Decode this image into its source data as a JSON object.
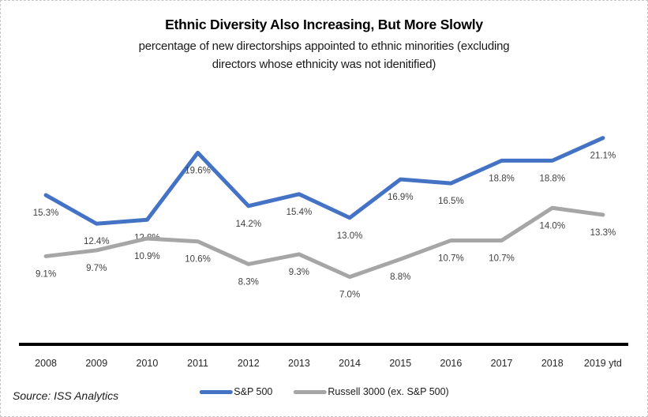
{
  "title": "Ethnic Diversity Also Increasing, But More Slowly",
  "subtitle_lines": [
    "percentage of new directorships appointed to ethnic minorities (excluding",
    "directors whose ethnicity was not idenitified)"
  ],
  "source": "Source: ISS Analytics",
  "colors": {
    "sp500": "#4472C4",
    "russell": "#A6A6A6",
    "axis": "#000000",
    "data_label": "#404040"
  },
  "chart_data": {
    "type": "line",
    "categories": [
      "2008",
      "2009",
      "2010",
      "2011",
      "2012",
      "2013",
      "2014",
      "2015",
      "2016",
      "2017",
      "2018",
      "2019 ytd"
    ],
    "series": [
      {
        "name": "S&P 500",
        "color_key": "sp500",
        "values": [
          15.3,
          12.4,
          12.8,
          19.6,
          14.2,
          15.4,
          13.0,
          16.9,
          16.5,
          18.8,
          18.8,
          21.1
        ]
      },
      {
        "name": "Russell 3000 (ex. S&P 500)",
        "color_key": "russell",
        "values": [
          9.1,
          9.7,
          10.9,
          10.6,
          8.3,
          9.3,
          7.0,
          8.8,
          10.7,
          10.7,
          14.0,
          13.3
        ]
      }
    ],
    "label_format": "percent_1dp",
    "ylim": [
      0,
      25
    ],
    "grid": false,
    "y_axis_visible": false,
    "legend_position": "bottom"
  },
  "legend": {
    "items": [
      {
        "label": "S&P 500",
        "color_key": "sp500"
      },
      {
        "label": "Russell 3000 (ex. S&P 500)",
        "color_key": "russell"
      }
    ]
  }
}
